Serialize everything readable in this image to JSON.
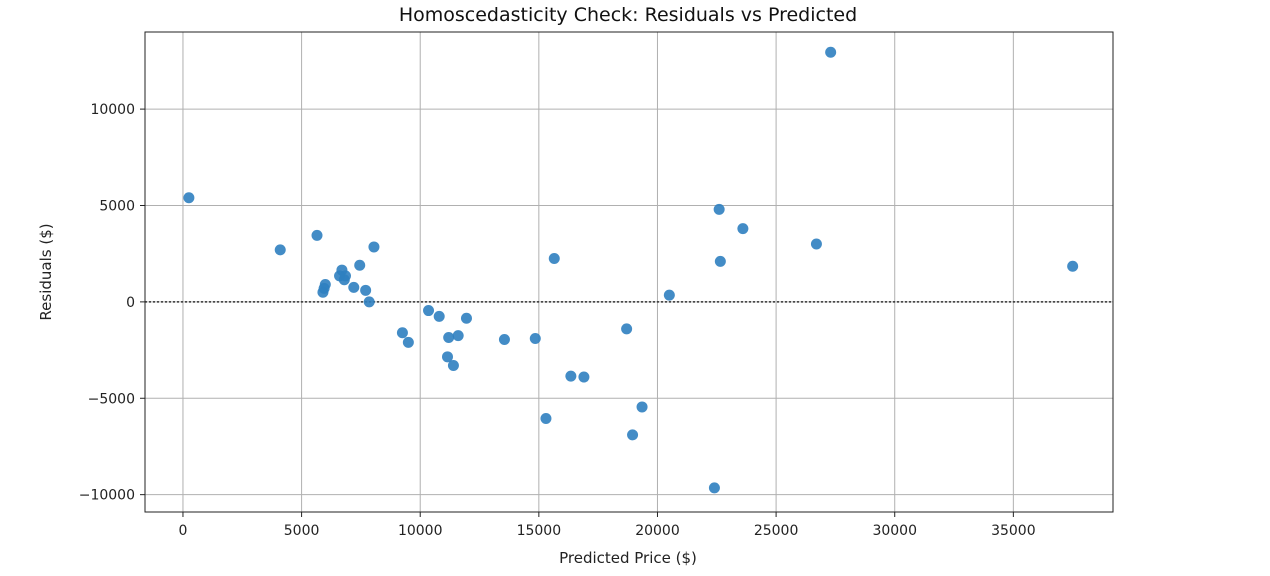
{
  "chart_data": {
    "type": "scatter",
    "title": "Homoscedasticity Check: Residuals vs Predicted",
    "xlabel": "Predicted Price ($)",
    "ylabel": "Residuals ($)",
    "xlim": [
      -1600,
      39200
    ],
    "ylim": [
      -10900,
      14000
    ],
    "xticks": [
      0,
      5000,
      10000,
      15000,
      20000,
      25000,
      30000,
      35000
    ],
    "xtick_labels": [
      "0",
      "5000",
      "10000",
      "15000",
      "20000",
      "25000",
      "30000",
      "35000"
    ],
    "yticks": [
      -10000,
      -5000,
      0,
      5000,
      10000
    ],
    "ytick_labels": [
      "−10000",
      "−5000",
      "0",
      "5000",
      "10000"
    ],
    "grid": true,
    "reference_line": {
      "y": 0,
      "style": "dotted",
      "color": "#333333"
    },
    "marker_color": "#2f7fc0",
    "series": [
      {
        "points": [
          [
            250,
            5400
          ],
          [
            4100,
            2700
          ],
          [
            5650,
            3450
          ],
          [
            5900,
            500
          ],
          [
            5950,
            700
          ],
          [
            6000,
            900
          ],
          [
            6600,
            1350
          ],
          [
            6700,
            1650
          ],
          [
            6800,
            1150
          ],
          [
            6850,
            1350
          ],
          [
            7200,
            750
          ],
          [
            7450,
            1900
          ],
          [
            7700,
            600
          ],
          [
            7850,
            0
          ],
          [
            8050,
            2850
          ],
          [
            9250,
            -1600
          ],
          [
            9500,
            -2100
          ],
          [
            10350,
            -450
          ],
          [
            10800,
            -750
          ],
          [
            11150,
            -2850
          ],
          [
            11200,
            -1850
          ],
          [
            11400,
            -3300
          ],
          [
            11600,
            -1750
          ],
          [
            11950,
            -850
          ],
          [
            13550,
            -1950
          ],
          [
            14850,
            -1900
          ],
          [
            15300,
            -6050
          ],
          [
            15650,
            2250
          ],
          [
            16350,
            -3850
          ],
          [
            16900,
            -3900
          ],
          [
            18700,
            -1400
          ],
          [
            18950,
            -6900
          ],
          [
            19350,
            -5450
          ],
          [
            20500,
            350
          ],
          [
            22400,
            -9650
          ],
          [
            22600,
            4800
          ],
          [
            22650,
            2100
          ],
          [
            23600,
            3800
          ],
          [
            26700,
            3000
          ],
          [
            27300,
            12950
          ],
          [
            37500,
            1850
          ]
        ]
      }
    ]
  }
}
